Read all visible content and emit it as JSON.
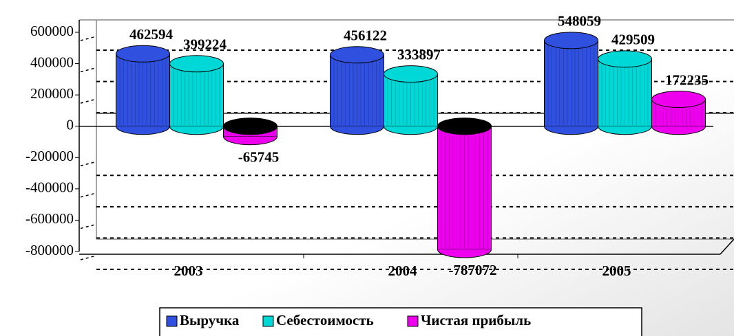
{
  "chart_data": {
    "type": "bar",
    "categories": [
      "2003",
      "2004",
      "2005"
    ],
    "series": [
      {
        "name": "Выручка",
        "color": "#3050e0",
        "values": [
          462594,
          456122,
          548059
        ]
      },
      {
        "name": "Себестоимость",
        "color": "#00d8d8",
        "values": [
          399224,
          333897,
          429509
        ]
      },
      {
        "name": "Чистая прибыль",
        "color": "#ee00ee",
        "values": [
          -65745,
          -787072,
          172235
        ]
      }
    ],
    "ylim": [
      -800000,
      600000
    ],
    "yticks": [
      -800000,
      -600000,
      -400000,
      -200000,
      0,
      200000,
      400000,
      600000
    ],
    "grid": true
  }
}
